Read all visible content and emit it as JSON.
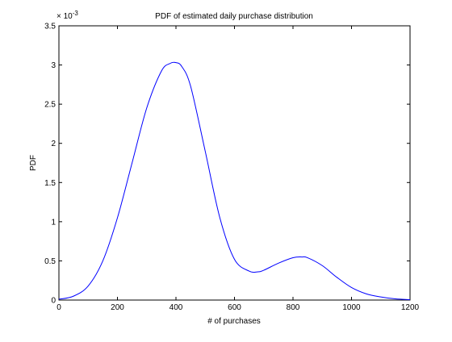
{
  "chart_data": {
    "type": "line",
    "title": "PDF of estimated daily purchase distribution",
    "xlabel": "# of purchases",
    "ylabel": "PDF",
    "y_multiplier": "× 10",
    "y_multiplier_exponent": "-3",
    "xlim": [
      0,
      1200
    ],
    "ylim": [
      0,
      3.5
    ],
    "xticks": [
      0,
      200,
      400,
      600,
      800,
      1000,
      1200
    ],
    "xtick_labels": [
      "0",
      "200",
      "400",
      "600",
      "800",
      "1000",
      "1200"
    ],
    "yticks": [
      0,
      0.5,
      1,
      1.5,
      2,
      2.5,
      3,
      3.5
    ],
    "ytick_labels": [
      "0",
      "0.5",
      "1",
      "1.5",
      "2",
      "2.5",
      "3",
      "3.5"
    ],
    "grid": false,
    "legend": "none",
    "line_color": "#0000ff",
    "series": [
      {
        "x": [
          0,
          50,
          100,
          150,
          200,
          250,
          300,
          350,
          380,
          400,
          420,
          450,
          500,
          550,
          600,
          650,
          680,
          700,
          750,
          800,
          830,
          850,
          900,
          950,
          1000,
          1050,
          1100,
          1150,
          1200
        ],
        "values": [
          0.01,
          0.05,
          0.18,
          0.5,
          1.05,
          1.75,
          2.45,
          2.92,
          3.02,
          3.03,
          2.98,
          2.73,
          1.9,
          1.05,
          0.52,
          0.37,
          0.36,
          0.38,
          0.47,
          0.54,
          0.55,
          0.54,
          0.44,
          0.29,
          0.16,
          0.08,
          0.04,
          0.015,
          0.005
        ]
      }
    ]
  }
}
